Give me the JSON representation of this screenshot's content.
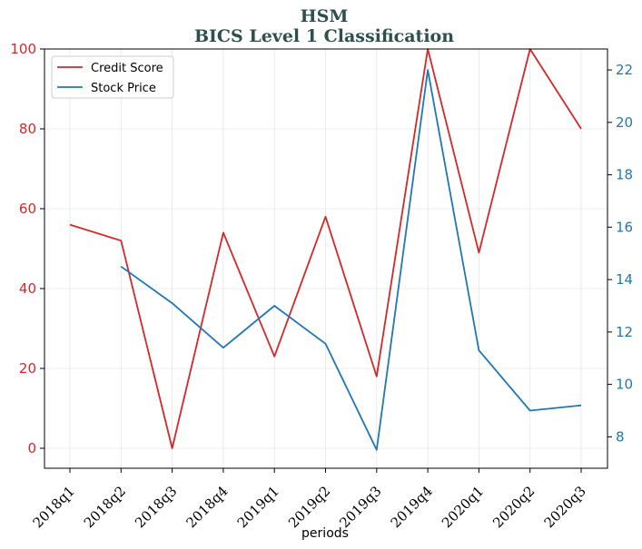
{
  "chart_data": {
    "type": "line",
    "title": "HSM",
    "subtitle": "BICS Level 1 Classification",
    "xlabel": "periods",
    "categories": [
      "2018q1",
      "2018q2",
      "2018q3",
      "2018q4",
      "2019q1",
      "2019q2",
      "2019q3",
      "2019q4",
      "2020q1",
      "2020q2",
      "2020q3"
    ],
    "y_left": {
      "ylim": [
        -5,
        100
      ],
      "ticks": [
        0,
        20,
        40,
        60,
        80,
        100
      ],
      "color": "#d62728"
    },
    "y_right": {
      "ylim": [
        6.8,
        22.8
      ],
      "ticks": [
        8,
        10,
        12,
        14,
        16,
        18,
        20,
        22
      ],
      "color": "#1f77b4"
    },
    "series": [
      {
        "name": "Credit Score",
        "axis": "left",
        "color": "#d62728",
        "values": [
          56,
          52,
          0,
          54,
          23,
          58,
          18,
          100,
          49,
          100,
          80
        ]
      },
      {
        "name": "Stock Price",
        "axis": "right",
        "color": "#1f77b4",
        "values": [
          null,
          14.5,
          13.1,
          11.4,
          13.0,
          11.55,
          7.5,
          22.0,
          11.3,
          9.0,
          9.2
        ]
      }
    ],
    "grid": true,
    "legend_position": "top-left"
  }
}
